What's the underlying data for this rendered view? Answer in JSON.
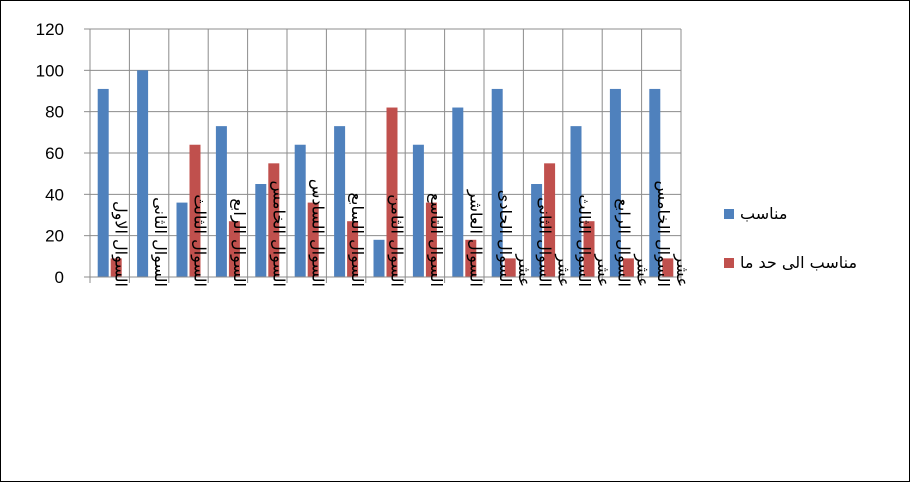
{
  "chart_data": {
    "type": "bar",
    "categories": [
      "السوال الاول",
      "السوال الثانى",
      "السوال الثالث",
      "السوال الرابع",
      "السوال الخامس",
      "السوال السادس",
      "السوال السابع",
      "السوال الثامن",
      "السوال التاسع",
      "السوال العاشر",
      "السوال الحادى عشر",
      "السوال الثانى عشر",
      "السوال الثالث عشر",
      "السوال الرابع عشر",
      "السوال الخامس عشر"
    ],
    "series": [
      {
        "name": "مناسب",
        "color": "#4F81BD",
        "values": [
          91,
          100,
          36,
          73,
          45,
          64,
          73,
          18,
          64,
          82,
          91,
          45,
          73,
          91,
          91
        ]
      },
      {
        "name": "مناسب الى حد ما",
        "color": "#C0504D",
        "values": [
          9,
          0,
          64,
          27,
          55,
          36,
          27,
          82,
          36,
          18,
          9,
          55,
          27,
          9,
          9
        ]
      }
    ],
    "ylim": [
      0,
      120
    ],
    "yticks": [
      0,
      20,
      40,
      60,
      80,
      100,
      120
    ],
    "grid": true,
    "legend_position": "right"
  }
}
